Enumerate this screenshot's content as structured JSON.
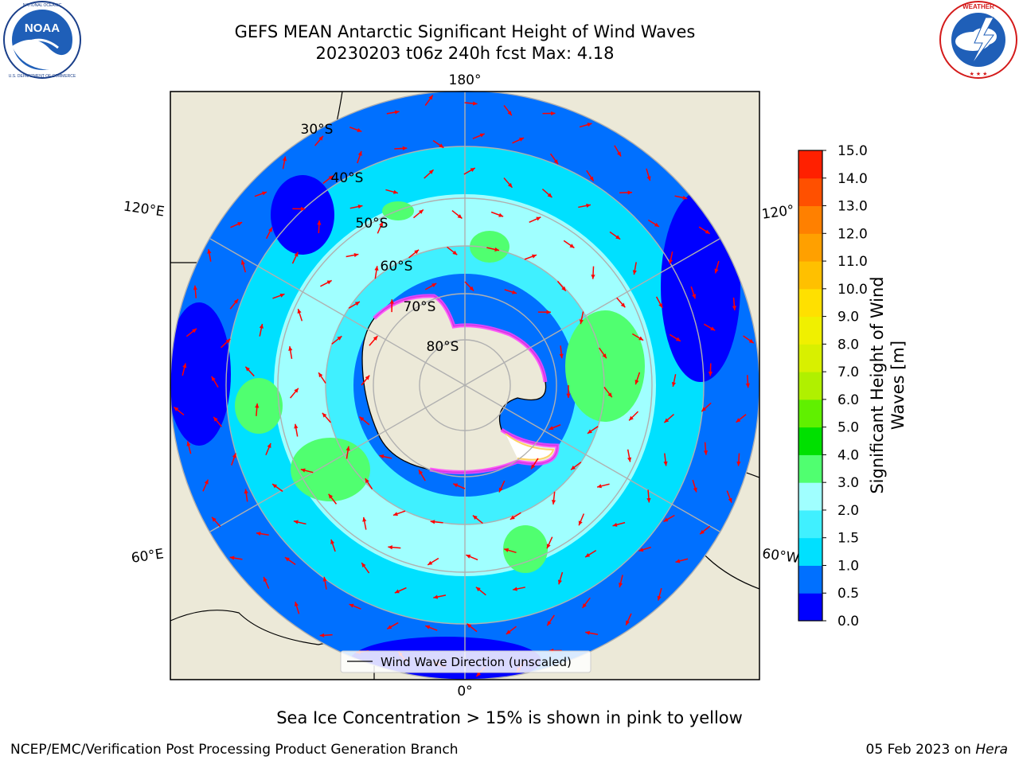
{
  "header": {
    "title_line1": "GEFS MEAN Antarctic Significant Height of Wind Waves",
    "title_line2": "20230203 t06z 240h fcst   Max: 4.18"
  },
  "logos": {
    "left": {
      "text": "NOAA",
      "ring_text": "NATIONAL OCEANIC AND ATMOSPHERIC ADMINISTRATION · U.S. DEPARTMENT OF COMMERCE"
    },
    "right": {
      "ring_text": "NATIONAL WEATHER SERVICE"
    }
  },
  "map": {
    "longitude_labels": {
      "top": "180°",
      "bottom": "0°",
      "left_upper": "120°E",
      "left_lower": "60°E",
      "right_upper": "120°",
      "right_lower": "60°W"
    },
    "latitude_labels": [
      "30°S",
      "40°S",
      "50°S",
      "60°S",
      "70°S",
      "80°S"
    ],
    "legend_text": "Wind Wave Direction (unscaled)",
    "colors": {
      "ocean_land": "#ece9d8",
      "coast": "#000000",
      "grid": "#b0b0b0",
      "arrow": "#ff0000"
    }
  },
  "colorbar": {
    "label": "Significant Height of Wind Waves [m]",
    "ticks": [
      "0.0",
      "0.5",
      "1.0",
      "1.5",
      "2.0",
      "3.0",
      "4.0",
      "5.0",
      "6.0",
      "7.0",
      "8.0",
      "9.0",
      "10.0",
      "11.0",
      "12.0",
      "13.0",
      "14.0",
      "15.0"
    ],
    "colors": [
      "#0000ff",
      "#0070ff",
      "#00e0ff",
      "#40f0ff",
      "#a0ffff",
      "#50ff70",
      "#00e000",
      "#60f000",
      "#b0f000",
      "#d8f000",
      "#f0f000",
      "#ffe000",
      "#ffc000",
      "#ffa000",
      "#ff8000",
      "#ff5000",
      "#ff2000"
    ]
  },
  "footer": {
    "note": "Sea Ice Concentration > 15% is shown in pink to yellow",
    "credit": "NCEP/EMC/Verification Post Processing Product Generation Branch",
    "date": "05 Feb 2023 on",
    "host": "Hera"
  }
}
